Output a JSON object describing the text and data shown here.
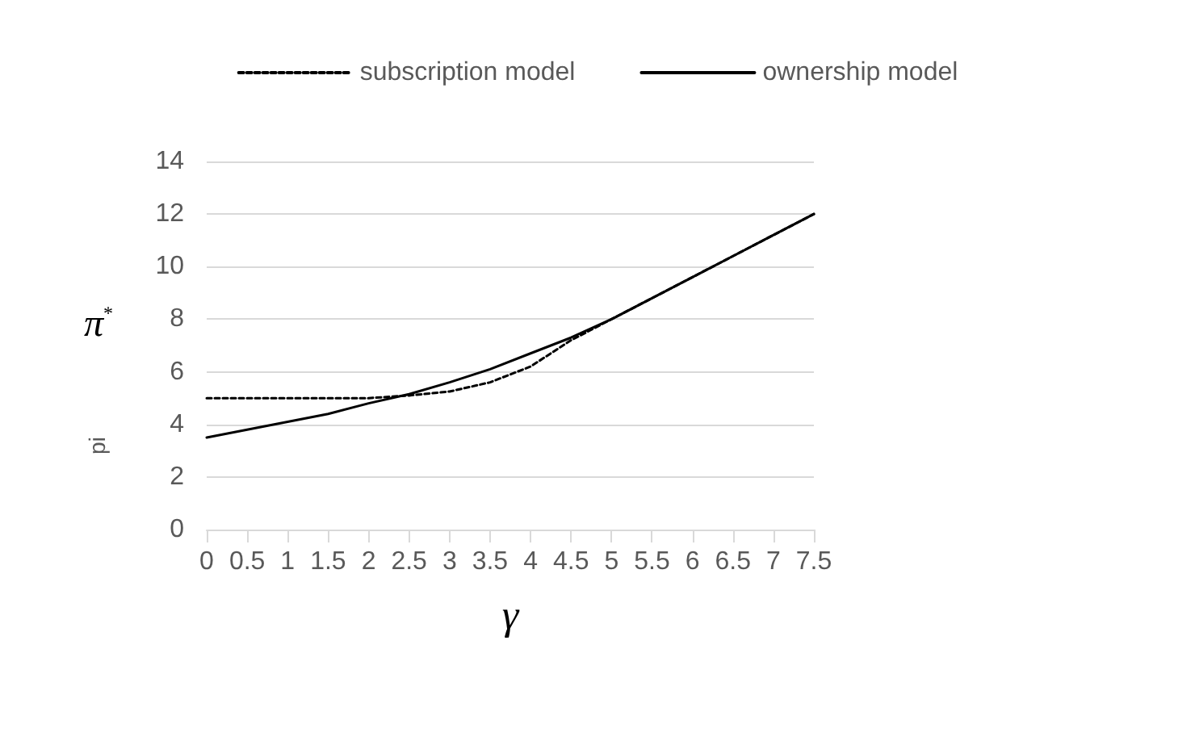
{
  "chart_data": {
    "type": "line",
    "xlabel": "γ",
    "ylabel": "pi",
    "annotations": [
      "π$^{*}$"
    ],
    "categories": [
      "0",
      "0.5",
      "1",
      "1.5",
      "2",
      "2.5",
      "3",
      "3.5",
      "4",
      "4.5",
      "5",
      "5.5",
      "6",
      "6.5",
      "7",
      "7.5"
    ],
    "ylim": [
      0,
      14
    ],
    "yticks": [
      0,
      2,
      4,
      6,
      8,
      10,
      12,
      14
    ],
    "grid": "y",
    "legend": "top",
    "marker": "none",
    "series": [
      {
        "name": "subscription model",
        "color": "#000000",
        "line_style": "dashed",
        "values": [
          5,
          5,
          5,
          5,
          5,
          5.1,
          5.25,
          5.6,
          6.2,
          7.2,
          8.0,
          8.8,
          9.6,
          10.4,
          11.2,
          12.0
        ]
      },
      {
        "name": "ownership model",
        "color": "#000000",
        "line_style": "solid",
        "values": [
          3.5,
          3.8,
          4.1,
          4.4,
          4.8,
          5.15,
          5.6,
          6.1,
          6.7,
          7.3,
          8.0,
          8.8,
          9.6,
          10.4,
          11.2,
          12.0
        ]
      }
    ]
  }
}
